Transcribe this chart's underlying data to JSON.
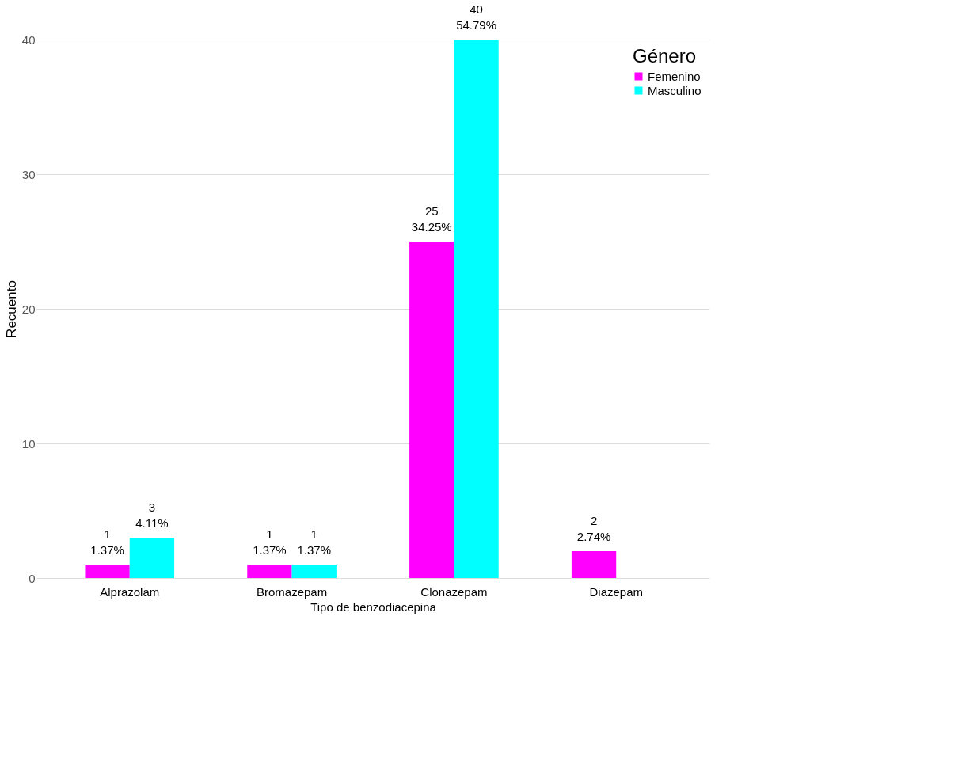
{
  "chart_data": {
    "type": "bar",
    "xlabel": "Tipo de   benzodiacepina",
    "ylabel": "Recuento",
    "legend_title": "Género",
    "categories": [
      "Alprazolam",
      "Bromazepam",
      "Clonazepam",
      "Diazepam"
    ],
    "series": [
      {
        "name": "Femenino",
        "color": "#ff00ff",
        "values": [
          1,
          1,
          25,
          2
        ],
        "value_labels": [
          "1 1.37%",
          "1 1.37%",
          "25 34.25%",
          "2 2.74%"
        ]
      },
      {
        "name": "Masculino",
        "color": "#00ffff",
        "values": [
          3,
          1,
          40,
          0
        ],
        "value_labels": [
          "3 4.11%",
          "1 1.37%",
          "40 54.79%",
          null
        ]
      }
    ],
    "ylim": [
      0,
      40
    ],
    "yticks": [
      0,
      10,
      20,
      30,
      40
    ],
    "grid": "y",
    "legend": "top right"
  }
}
